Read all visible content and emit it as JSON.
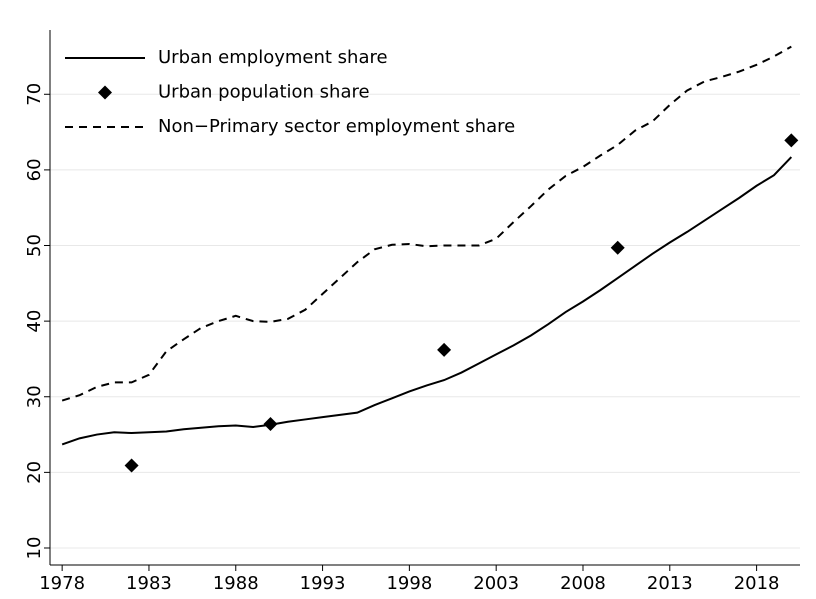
{
  "chart_data": {
    "type": "line",
    "x": [
      1978,
      1979,
      1980,
      1981,
      1982,
      1983,
      1984,
      1985,
      1986,
      1987,
      1988,
      1989,
      1990,
      1991,
      1992,
      1993,
      1994,
      1995,
      1996,
      1997,
      1998,
      1999,
      2000,
      2001,
      2002,
      2003,
      2004,
      2005,
      2006,
      2007,
      2008,
      2009,
      2010,
      2011,
      2012,
      2013,
      2014,
      2015,
      2016,
      2017,
      2018,
      2019,
      2020
    ],
    "series": [
      {
        "name": "Urban employment share",
        "color": "#000000",
        "style": "solid",
        "values": [
          23.7,
          24.5,
          25.0,
          25.3,
          25.2,
          25.3,
          25.4,
          25.7,
          25.9,
          26.1,
          26.2,
          26.0,
          26.3,
          26.7,
          27.0,
          27.3,
          27.6,
          27.9,
          28.9,
          29.8,
          30.7,
          31.5,
          32.2,
          33.2,
          34.4,
          35.6,
          36.8,
          38.1,
          39.6,
          41.2,
          42.6,
          44.1,
          45.7,
          47.3,
          48.9,
          50.4,
          51.8,
          53.3,
          54.8,
          56.3,
          57.9,
          59.3,
          61.7
        ]
      },
      {
        "name": "Urban population share",
        "color": "#000000",
        "style": "diamond",
        "x": [
          1982,
          1990,
          2000,
          2010,
          2020
        ],
        "values": [
          20.9,
          26.4,
          36.2,
          49.7,
          63.9
        ]
      },
      {
        "name": "Non−Primary sector employment share",
        "color": "#000000",
        "style": "dash",
        "values": [
          29.5,
          30.2,
          31.3,
          31.9,
          31.9,
          32.9,
          36.0,
          37.6,
          39.1,
          40.0,
          40.7,
          40.0,
          39.9,
          40.3,
          41.5,
          43.6,
          45.7,
          47.8,
          49.5,
          50.1,
          50.2,
          49.9,
          50.0,
          50.0,
          50.0,
          50.9,
          53.1,
          55.2,
          57.4,
          59.2,
          60.4,
          61.9,
          63.3,
          65.2,
          66.4,
          68.6,
          70.5,
          71.7,
          72.3,
          73.0,
          73.9,
          75.0,
          76.3
        ]
      }
    ],
    "xlim": [
      1977.3,
      2020.5
    ],
    "xticks": [
      1978,
      1983,
      1988,
      1993,
      1998,
      2003,
      2008,
      2013,
      2018
    ],
    "ylim": [
      7.75,
      78.5
    ],
    "yticks": [
      10,
      20,
      30,
      40,
      50,
      60,
      70
    ],
    "grid": true,
    "legend": "top-left"
  }
}
